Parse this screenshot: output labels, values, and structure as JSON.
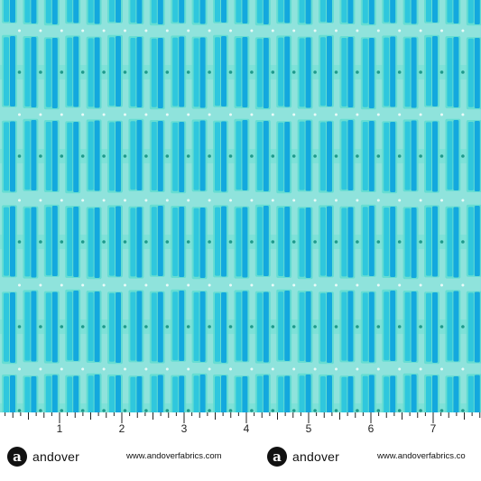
{
  "fabric": {
    "colors": {
      "background": "#8fe3dc",
      "bar_dark": "#13a8de",
      "bar_mid": "#2fc7dd",
      "bar_light": "#5fdcd0",
      "dot": "#1e9a8c"
    }
  },
  "ruler": {
    "numbers": [
      "1",
      "2",
      "3",
      "4",
      "5",
      "6",
      "7"
    ]
  },
  "branding": [
    {
      "logo_letter": "a",
      "name": "andover",
      "url": "www.andoverfabrics.com"
    },
    {
      "logo_letter": "a",
      "name": "andover",
      "url": "www.andoverfabrics.co"
    }
  ]
}
